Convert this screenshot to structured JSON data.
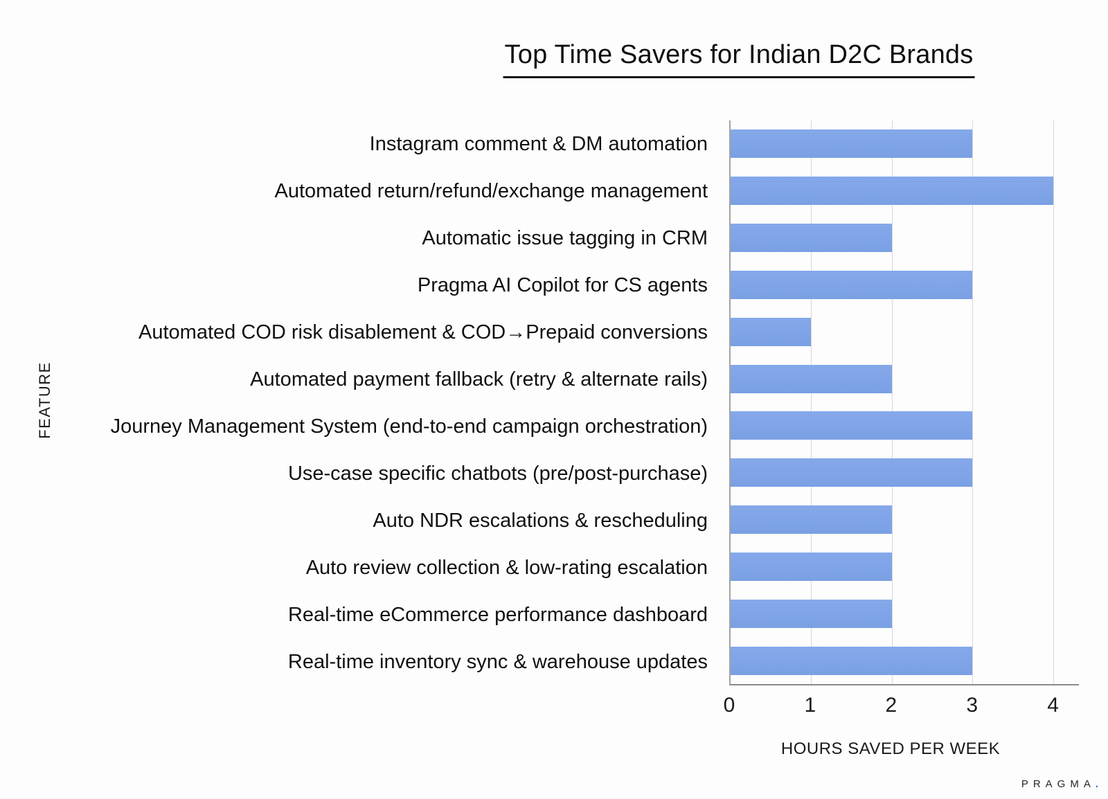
{
  "title": "Top Time Savers for Indian D2C Brands",
  "footer": {
    "brand": "PRAGMA",
    "brand_dot": "."
  },
  "chart_data": {
    "type": "bar",
    "orientation": "horizontal",
    "title": "Top Time Savers for Indian D2C Brands",
    "xlabel": "HOURS SAVED PER WEEK",
    "ylabel": "FEATURE",
    "categories": [
      "Instagram comment & DM automation",
      "Automated return/refund/exchange management",
      "Automatic issue tagging in CRM",
      "Pragma AI Copilot for CS agents",
      "Automated COD risk disablement & COD→Prepaid conversions",
      "Automated payment fallback (retry & alternate rails)",
      "Journey Management System (end-to-end campaign orchestration)",
      "Use-case specific chatbots (pre/post-purchase)",
      "Auto NDR escalations & rescheduling",
      "Auto review collection & low-rating escalation",
      "Real-time eCommerce performance dashboard",
      "Real-time inventory sync & warehouse updates"
    ],
    "values": [
      3,
      4,
      2,
      3,
      1,
      2,
      3,
      3,
      2,
      2,
      2,
      3
    ],
    "xticks": [
      0,
      1,
      2,
      3,
      4
    ],
    "xlim": [
      0,
      4.32
    ],
    "bar_color": "#7da2e6",
    "grid": true,
    "legend": false
  }
}
